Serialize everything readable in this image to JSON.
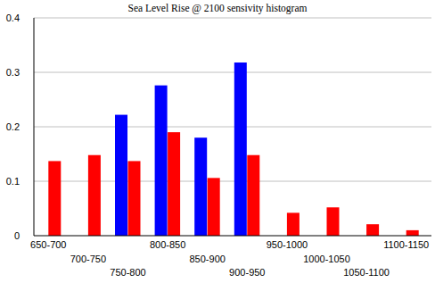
{
  "chart_data": {
    "type": "bar",
    "title": "Sea Level Rise @ 2100 sensivity histogram",
    "categories": [
      "650-700",
      "700-750",
      "750-800",
      "800-850",
      "850-900",
      "900-950",
      "950-1000",
      "1000-1050",
      "1050-1100",
      "1100-1150"
    ],
    "series": [
      {
        "color": "#0000ff",
        "values": [
          0,
          0,
          0.222,
          0.276,
          0.18,
          0.318,
          0,
          0,
          0,
          0
        ]
      },
      {
        "color": "#ff0000",
        "values": [
          0.137,
          0.148,
          0.137,
          0.19,
          0.106,
          0.148,
          0.042,
          0.052,
          0.021,
          0.01
        ]
      }
    ],
    "ylim": [
      0,
      0.4
    ],
    "yticks": [
      0,
      0.1,
      0.2,
      0.3,
      0.4
    ],
    "grid": true
  }
}
